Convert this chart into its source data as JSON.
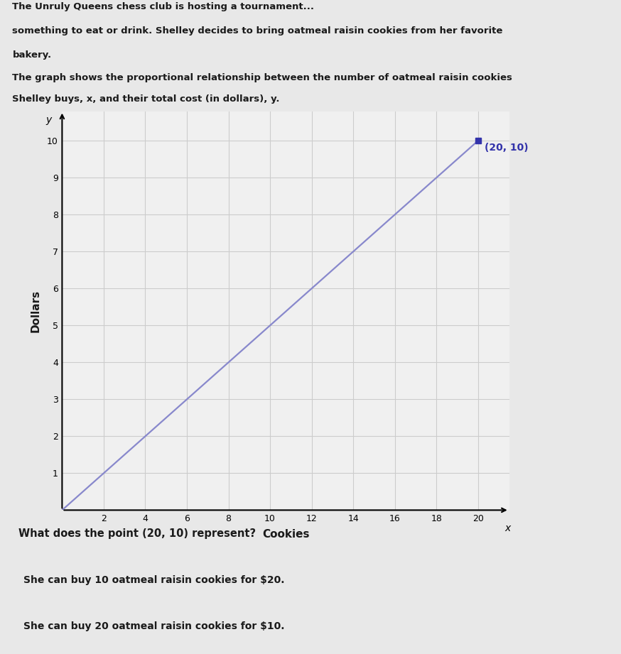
{
  "header_line1": "The Unruly Queens chess club is hosting a tournament...",
  "header_line2": "something to eat or drink. Shelley decides to bring oatmeal raisin cookies from her favorite",
  "header_line3": "bakery.",
  "description_line1": "The graph shows the proportional relationship between the number of oatmeal raisin cookies",
  "description_line2": "Shelley buys, x, and their total cost (in dollars), y.",
  "xlabel": "Cookies",
  "ylabel": "Dollars",
  "xlim": [
    0,
    21.5
  ],
  "ylim": [
    0,
    10.8
  ],
  "xticks": [
    2,
    4,
    6,
    8,
    10,
    12,
    14,
    16,
    18,
    20
  ],
  "yticks": [
    1,
    2,
    3,
    4,
    5,
    6,
    7,
    8,
    9,
    10
  ],
  "line_x": [
    0,
    20
  ],
  "line_y": [
    0,
    10
  ],
  "line_color": "#8888cc",
  "point_x": 20,
  "point_y": 10,
  "point_color": "#3333aa",
  "point_label": "(20, 10)",
  "question": "What does the point (20, 10) represent?",
  "answer1": "She can buy 10 oatmeal raisin cookies for $20.",
  "answer2": "She can buy 20 oatmeal raisin cookies for $10.",
  "bg_color": "#e8e8e8",
  "plot_bg_color": "#f0f0f0",
  "grid_color": "#cccccc",
  "text_color": "#1a1a1a",
  "answer_box_border": "#8899aa",
  "answer_box_bg": "#f5f5f5"
}
